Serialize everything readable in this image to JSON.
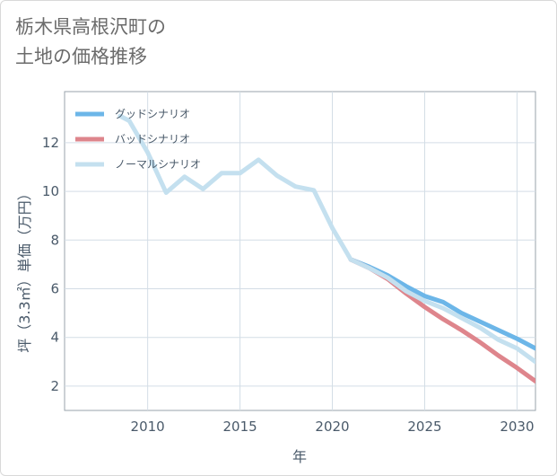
{
  "title_lines": [
    "栃木県高根沢町の",
    "土地の価格推移"
  ],
  "chart_data": {
    "type": "line",
    "title": "栃木県高根沢町の土地の価格推移",
    "xlabel": "年",
    "ylabel": "坪（3.3㎡）単価（万円）",
    "xlim": [
      2005.5,
      2031
    ],
    "ylim": [
      1,
      14.1
    ],
    "xticks": [
      2010,
      2015,
      2020,
      2025,
      2030
    ],
    "yticks": [
      2,
      4,
      6,
      8,
      10,
      12
    ],
    "grid": true,
    "legend_position": "top-left",
    "series": [
      {
        "name": "グッドシナリオ",
        "color": "#6cb6e8",
        "x": [
          2021,
          2022,
          2023,
          2024,
          2025,
          2026,
          2027,
          2028,
          2029,
          2030,
          2031
        ],
        "y": [
          7.2,
          6.9,
          6.55,
          6.1,
          5.7,
          5.45,
          5.0,
          4.65,
          4.3,
          3.95,
          3.55
        ]
      },
      {
        "name": "バッドシナリオ",
        "color": "#de858c",
        "x": [
          2021,
          2022,
          2023,
          2024,
          2025,
          2026,
          2027,
          2028,
          2029,
          2030,
          2031
        ],
        "y": [
          7.2,
          6.85,
          6.4,
          5.8,
          5.25,
          4.75,
          4.3,
          3.8,
          3.25,
          2.75,
          2.2
        ]
      },
      {
        "name": "ノーマルシナリオ",
        "color": "#c4e0ef",
        "x": [
          2008.5,
          2009,
          2010,
          2011,
          2012,
          2013,
          2014,
          2015,
          2016,
          2017,
          2018,
          2019,
          2020,
          2021,
          2022,
          2023,
          2024,
          2025,
          2026,
          2027,
          2028,
          2029,
          2030,
          2031
        ],
        "y": [
          13.1,
          12.9,
          11.6,
          9.95,
          10.6,
          10.1,
          10.75,
          10.75,
          11.3,
          10.65,
          10.2,
          10.05,
          8.5,
          7.2,
          6.85,
          6.45,
          5.9,
          5.5,
          5.2,
          4.8,
          4.4,
          3.9,
          3.55,
          3.0
        ]
      }
    ]
  }
}
